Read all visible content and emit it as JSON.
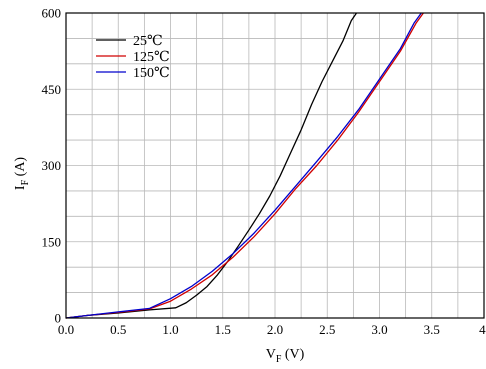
{
  "chart_data": {
    "type": "line",
    "title": "",
    "xlabel": {
      "main": "V",
      "sub": "F",
      "unit": " (V)"
    },
    "ylabel": {
      "main": "I",
      "sub": "F",
      "unit": " (A)"
    },
    "xlim": [
      0,
      4
    ],
    "ylim": [
      0,
      600
    ],
    "x_ticks": [
      0,
      0.5,
      1,
      1.5,
      2,
      2.5,
      3,
      3.5,
      4
    ],
    "x_tick_labels": [
      "0.0",
      "0.5",
      "1.0",
      "1.5",
      "2.0",
      "2.5",
      "3.0",
      "3.5",
      "4."
    ],
    "y_ticks": [
      0,
      150,
      300,
      450,
      600
    ],
    "y_tick_labels": [
      "0",
      "150",
      "300",
      "450",
      "600"
    ],
    "grid": true,
    "grid_x_step": 0.25,
    "grid_y_step": 50,
    "legend_position": "top-left",
    "series": [
      {
        "name": "25℃",
        "color": "#000000",
        "points": [
          [
            0,
            0
          ],
          [
            0.2,
            5
          ],
          [
            0.5,
            10
          ],
          [
            0.8,
            16
          ],
          [
            1.05,
            20
          ],
          [
            1.15,
            30
          ],
          [
            1.25,
            45
          ],
          [
            1.35,
            62
          ],
          [
            1.45,
            85
          ],
          [
            1.55,
            112
          ],
          [
            1.65,
            142
          ],
          [
            1.75,
            173
          ],
          [
            1.85,
            205
          ],
          [
            1.95,
            240
          ],
          [
            2.05,
            280
          ],
          [
            2.15,
            325
          ],
          [
            2.25,
            370
          ],
          [
            2.35,
            420
          ],
          [
            2.45,
            465
          ],
          [
            2.55,
            505
          ],
          [
            2.65,
            545
          ],
          [
            2.73,
            585
          ],
          [
            2.78,
            600
          ]
        ]
      },
      {
        "name": "125℃",
        "color": "#d00000",
        "points": [
          [
            0,
            0
          ],
          [
            0.2,
            5
          ],
          [
            0.5,
            11
          ],
          [
            0.8,
            18
          ],
          [
            1.0,
            33
          ],
          [
            1.2,
            57
          ],
          [
            1.4,
            85
          ],
          [
            1.6,
            120
          ],
          [
            1.8,
            160
          ],
          [
            2.0,
            205
          ],
          [
            2.2,
            255
          ],
          [
            2.4,
            300
          ],
          [
            2.6,
            350
          ],
          [
            2.8,
            405
          ],
          [
            3.0,
            465
          ],
          [
            3.2,
            525
          ],
          [
            3.35,
            580
          ],
          [
            3.42,
            600
          ]
        ]
      },
      {
        "name": "150℃",
        "color": "#0000cc",
        "points": [
          [
            0,
            0
          ],
          [
            0.2,
            5
          ],
          [
            0.5,
            12
          ],
          [
            0.8,
            19
          ],
          [
            1.0,
            38
          ],
          [
            1.2,
            62
          ],
          [
            1.4,
            92
          ],
          [
            1.6,
            127
          ],
          [
            1.8,
            167
          ],
          [
            2.0,
            212
          ],
          [
            2.2,
            260
          ],
          [
            2.4,
            308
          ],
          [
            2.6,
            357
          ],
          [
            2.8,
            410
          ],
          [
            3.0,
            470
          ],
          [
            3.2,
            530
          ],
          [
            3.33,
            580
          ],
          [
            3.4,
            600
          ]
        ]
      }
    ]
  }
}
